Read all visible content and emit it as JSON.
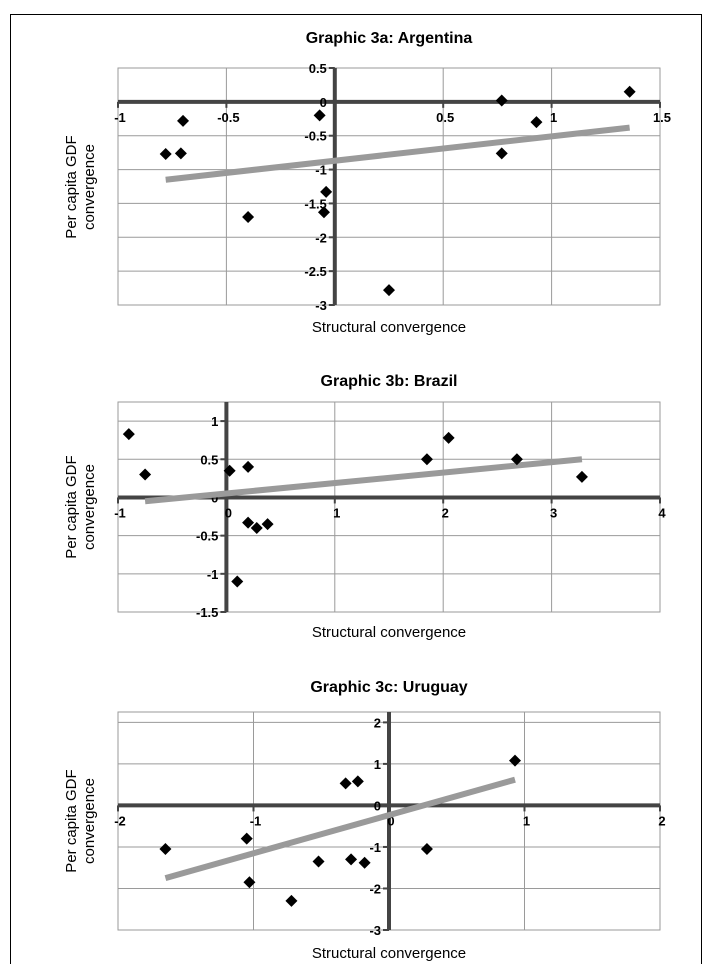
{
  "chart_data": [
    {
      "type": "scatter",
      "title": "Graphic 3a: Argentina",
      "xlabel": "Structural convergence",
      "ylabel": "Per capita GDF convergence",
      "xlim": [
        -1,
        1.5
      ],
      "ylim": [
        -3,
        0.5
      ],
      "xticks": [
        -1,
        -0.5,
        0,
        0.5,
        1,
        1.5
      ],
      "x_tick_labels": [
        "-1",
        "-0.5",
        "",
        "0.5",
        "1",
        "1.5"
      ],
      "yticks": [
        0.5,
        0,
        -0.5,
        -1,
        -1.5,
        -2,
        -2.5,
        -3
      ],
      "y_tick_labels": [
        "0.5",
        "0",
        "-0.5",
        "-1",
        "-1.5",
        "-2",
        "-2.5",
        "-3"
      ],
      "grid": true,
      "points": [
        {
          "x": -0.78,
          "y": -0.77
        },
        {
          "x": -0.71,
          "y": -0.76
        },
        {
          "x": -0.7,
          "y": -0.28
        },
        {
          "x": -0.4,
          "y": -1.7
        },
        {
          "x": -0.07,
          "y": -0.2
        },
        {
          "x": -0.05,
          "y": -1.63
        },
        {
          "x": -0.04,
          "y": -1.33
        },
        {
          "x": 0.25,
          "y": -2.78
        },
        {
          "x": 0.77,
          "y": 0.02
        },
        {
          "x": 0.77,
          "y": -0.76
        },
        {
          "x": 0.93,
          "y": -0.3
        },
        {
          "x": 1.36,
          "y": 0.15
        }
      ],
      "trendline": {
        "x": [
          -0.78,
          1.36
        ],
        "y": [
          -1.15,
          -0.38
        ]
      }
    },
    {
      "type": "scatter",
      "title": "Graphic 3b: Brazil",
      "xlabel": "Structural convergence",
      "ylabel": "Per capita GDF convergence",
      "xlim": [
        -1,
        4
      ],
      "ylim": [
        -1.5,
        1.25
      ],
      "xticks": [
        -1,
        0,
        1,
        2,
        3,
        4
      ],
      "x_tick_labels": [
        "-1",
        "0",
        "1",
        "2",
        "3",
        "4"
      ],
      "yticks": [
        1,
        0.5,
        0,
        -0.5,
        -1,
        -1.5
      ],
      "y_tick_labels": [
        "1",
        "0.5",
        "0",
        "-0.5",
        "-1",
        "-1.5"
      ],
      "grid": true,
      "points": [
        {
          "x": -0.9,
          "y": 0.83
        },
        {
          "x": -0.75,
          "y": 0.3
        },
        {
          "x": 0.03,
          "y": 0.35
        },
        {
          "x": 0.1,
          "y": -1.1
        },
        {
          "x": 0.2,
          "y": 0.4
        },
        {
          "x": 0.2,
          "y": -0.33
        },
        {
          "x": 0.28,
          "y": -0.4
        },
        {
          "x": 0.38,
          "y": -0.35
        },
        {
          "x": 1.85,
          "y": 0.5
        },
        {
          "x": 2.05,
          "y": 0.78
        },
        {
          "x": 2.68,
          "y": 0.5
        },
        {
          "x": 3.28,
          "y": 0.27
        }
      ],
      "trendline": {
        "x": [
          -0.75,
          3.28
        ],
        "y": [
          -0.05,
          0.5
        ]
      }
    },
    {
      "type": "scatter",
      "title": "Graphic 3c: Uruguay",
      "xlabel": "Structural convergence",
      "ylabel": "Per capita GDF convergence",
      "xlim": [
        -2,
        2
      ],
      "ylim": [
        -3,
        2.25
      ],
      "xticks": [
        -2,
        -1,
        0,
        1,
        2
      ],
      "x_tick_labels": [
        "-2",
        "-1",
        "0",
        "1",
        "2"
      ],
      "yticks": [
        2,
        1,
        0,
        -1,
        -2,
        -3
      ],
      "y_tick_labels": [
        "2",
        "1",
        "0",
        "-1",
        "-2",
        "-3"
      ],
      "grid": true,
      "points": [
        {
          "x": -1.65,
          "y": -1.05
        },
        {
          "x": -1.05,
          "y": -0.8
        },
        {
          "x": -1.03,
          "y": -1.85
        },
        {
          "x": -0.72,
          "y": -2.3
        },
        {
          "x": -0.52,
          "y": -1.35
        },
        {
          "x": -0.32,
          "y": 0.53
        },
        {
          "x": -0.23,
          "y": 0.58
        },
        {
          "x": -0.28,
          "y": -1.3
        },
        {
          "x": -0.18,
          "y": -1.38
        },
        {
          "x": 0.28,
          "y": -1.05
        },
        {
          "x": 0.93,
          "y": 1.08
        }
      ],
      "trendline": {
        "x": [
          -1.65,
          0.93
        ],
        "y": [
          -1.75,
          0.62
        ]
      }
    }
  ],
  "colors": {
    "axis": "#444444",
    "grid": "#9a9a9a",
    "marker": "#000000",
    "trend": "#9a9a9a"
  }
}
